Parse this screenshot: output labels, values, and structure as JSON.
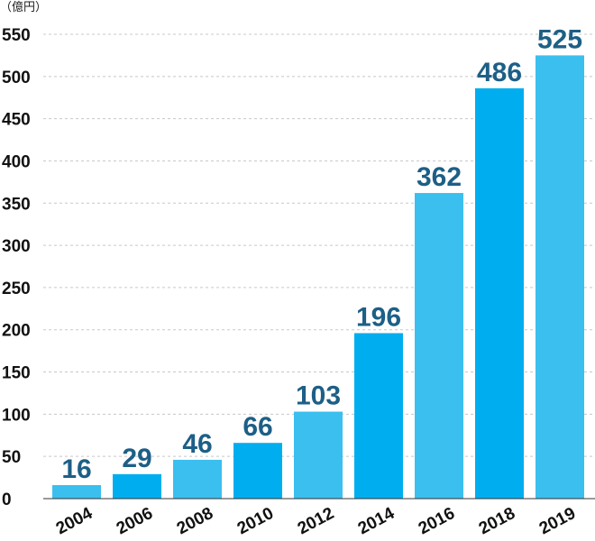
{
  "chart_data": {
    "type": "bar",
    "unit_label": "（億円）",
    "categories": [
      "2004",
      "2006",
      "2008",
      "2010",
      "2012",
      "2014",
      "2016",
      "2018",
      "2019"
    ],
    "values": [
      16,
      29,
      46,
      66,
      103,
      196,
      362,
      486,
      525
    ],
    "data_labels": [
      "16",
      "29",
      "46",
      "66",
      "103",
      "196",
      "362",
      "486",
      "525"
    ],
    "bar_colors": [
      "#3bbfef",
      "#00aeef",
      "#3bbfef",
      "#00aeef",
      "#3bbfef",
      "#00aeef",
      "#3bbfef",
      "#00aeef",
      "#3bbfef"
    ],
    "label_color": "#1d5f86",
    "yticks": [
      0,
      50,
      100,
      150,
      200,
      250,
      300,
      350,
      400,
      450,
      500,
      550
    ],
    "ylim": [
      0,
      550
    ],
    "grid": true,
    "legend": false,
    "title": "",
    "xlabel": "",
    "ylabel": ""
  }
}
